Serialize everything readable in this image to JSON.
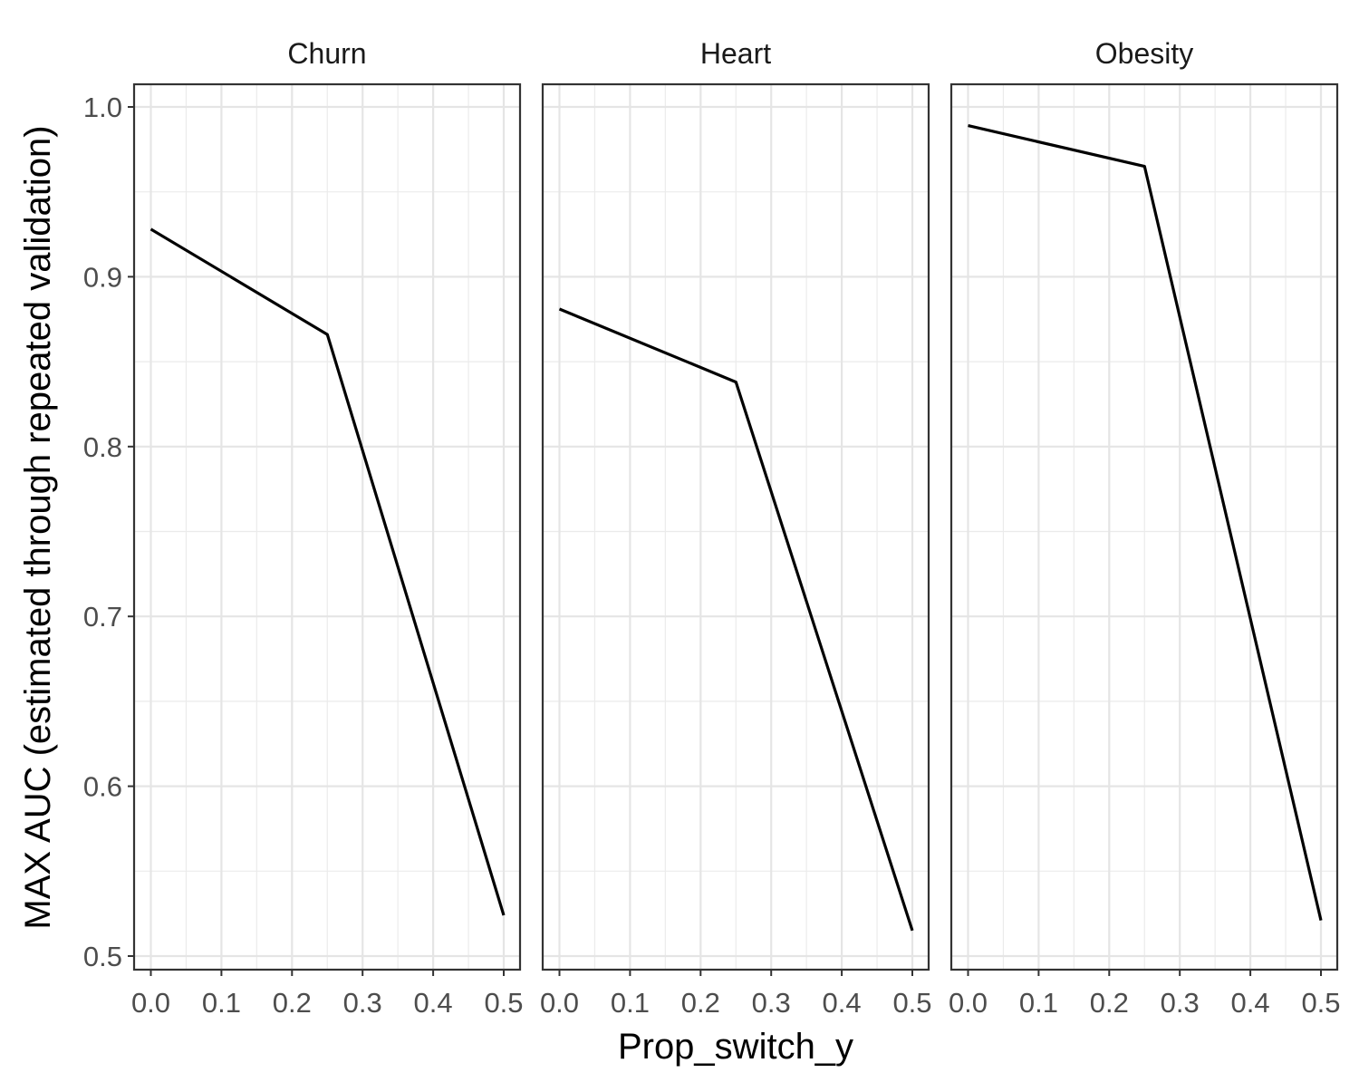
{
  "chart_data": {
    "type": "line",
    "xlabel": "Prop_switch_y",
    "ylabel": "MAX AUC (estimated through repeated validation)",
    "xlim": [
      0.0,
      0.5
    ],
    "ylim": [
      0.5,
      1.0
    ],
    "x_ticks": [
      "0.0",
      "0.1",
      "0.2",
      "0.3",
      "0.4",
      "0.5"
    ],
    "x_tick_values": [
      0.0,
      0.1,
      0.2,
      0.3,
      0.4,
      0.5
    ],
    "y_ticks": [
      "0.5",
      "0.6",
      "0.7",
      "0.8",
      "0.9",
      "1.0"
    ],
    "y_tick_values": [
      0.5,
      0.6,
      0.7,
      0.8,
      0.9,
      1.0
    ],
    "grid": true,
    "line_color": "#000000",
    "panels": [
      {
        "title": "Churn",
        "x": [
          0.0,
          0.25,
          0.5
        ],
        "y": [
          0.928,
          0.866,
          0.524
        ]
      },
      {
        "title": "Heart",
        "x": [
          0.0,
          0.25,
          0.5
        ],
        "y": [
          0.881,
          0.838,
          0.515
        ]
      },
      {
        "title": "Obesity",
        "x": [
          0.0,
          0.25,
          0.5
        ],
        "y": [
          0.989,
          0.965,
          0.521
        ]
      }
    ]
  }
}
